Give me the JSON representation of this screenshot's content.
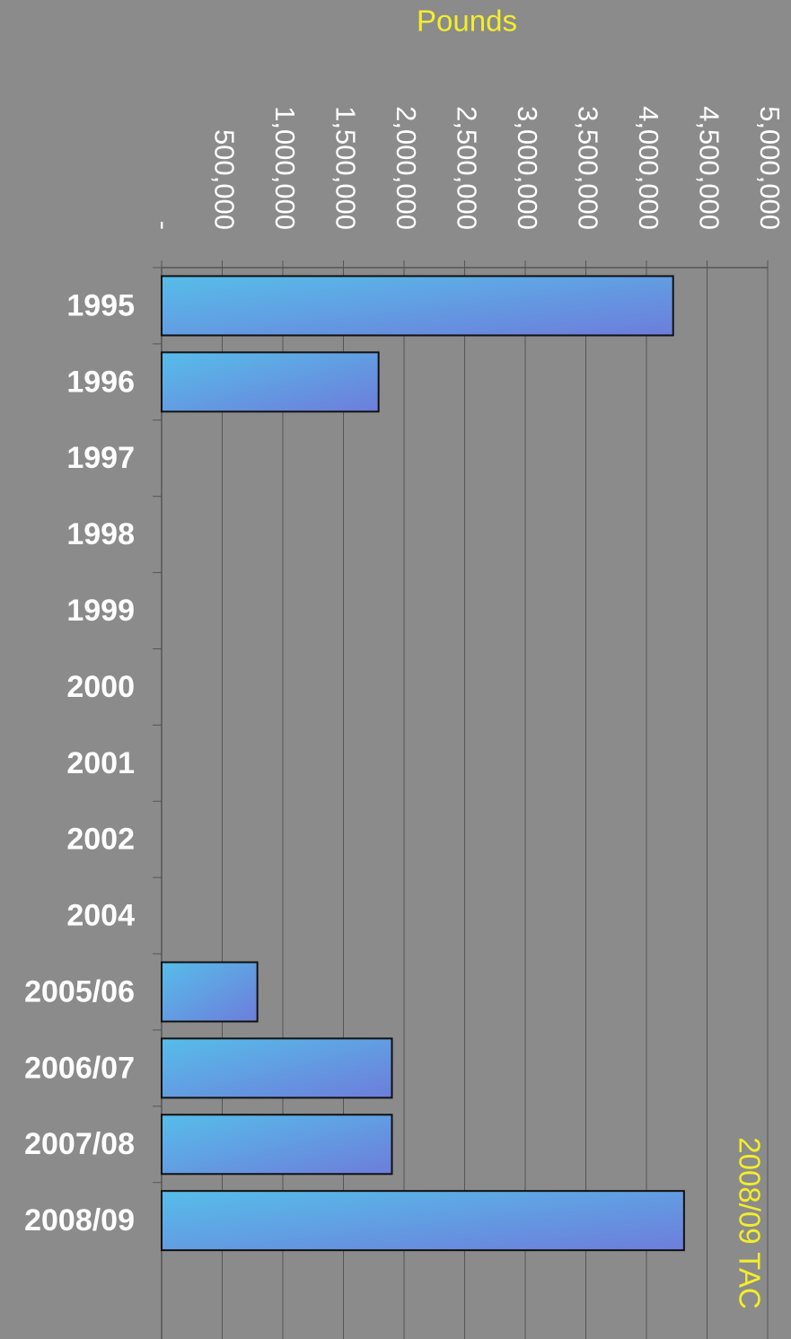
{
  "chart_data": {
    "type": "bar",
    "orientation": "horizontal",
    "title": "Pounds",
    "annotation": "2008/09 TAC",
    "categories": [
      "1995",
      "1996",
      "1997",
      "1998",
      "1999",
      "2000",
      "2001",
      "2002",
      "2004",
      "2005/06",
      "2006/07",
      "2007/08",
      "2008/09"
    ],
    "values": [
      4220000,
      1790000,
      null,
      null,
      null,
      null,
      null,
      null,
      null,
      790000,
      1900000,
      1900000,
      4310000
    ],
    "color": "#5aaee6",
    "xlim": [
      0,
      5000000
    ],
    "xticks": [
      {
        "value": 0,
        "label": "-"
      },
      {
        "value": 500000,
        "label": "500,000"
      },
      {
        "value": 1000000,
        "label": "1,000,000"
      },
      {
        "value": 1500000,
        "label": "1,500,000"
      },
      {
        "value": 2000000,
        "label": "2,000,000"
      },
      {
        "value": 2500000,
        "label": "2,500,000"
      },
      {
        "value": 3000000,
        "label": "3,000,000"
      },
      {
        "value": 3500000,
        "label": "3,500,000"
      },
      {
        "value": 4000000,
        "label": "4,000,000"
      },
      {
        "value": 4500000,
        "label": "4,500,000"
      },
      {
        "value": 5000000,
        "label": "5,000,000"
      }
    ],
    "grid": true
  }
}
